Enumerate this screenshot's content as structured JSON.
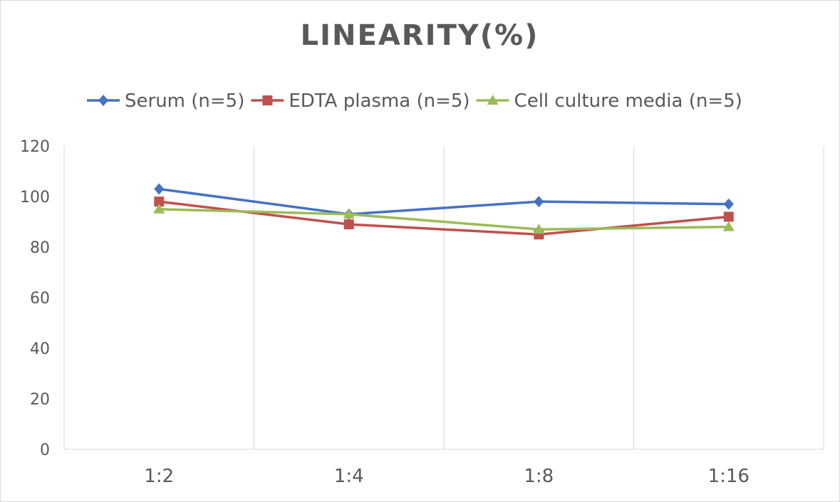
{
  "chart_data": {
    "type": "line",
    "title": "LINEARITY(%)",
    "xlabel": "",
    "ylabel": "",
    "categories": [
      "1:2",
      "1:4",
      "1:8",
      "1:16"
    ],
    "ylim": [
      0,
      120
    ],
    "yticks": [
      0,
      20,
      40,
      60,
      80,
      100,
      120
    ],
    "grid": "vertical",
    "legend_position": "top",
    "series": [
      {
        "name": "Serum (n=5)",
        "values": [
          103,
          93,
          98,
          97
        ],
        "color": "#4472c4",
        "marker": "diamond"
      },
      {
        "name": "EDTA plasma (n=5)",
        "values": [
          98,
          89,
          85,
          92
        ],
        "color": "#c0504d",
        "marker": "square"
      },
      {
        "name": "Cell culture media (n=5)",
        "values": [
          95,
          93,
          87,
          88
        ],
        "color": "#9bbb59",
        "marker": "triangle"
      }
    ]
  }
}
